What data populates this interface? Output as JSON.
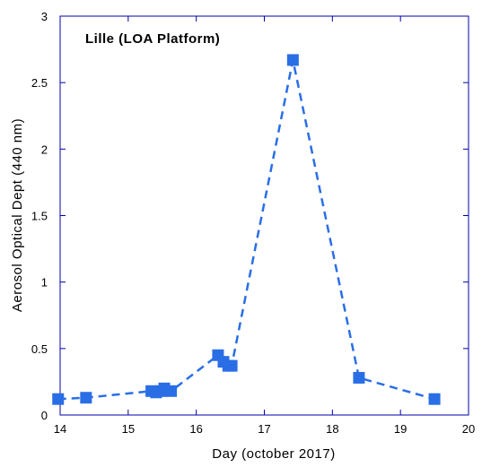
{
  "chart_data": {
    "type": "line",
    "title": "Lille (LOA Platform)",
    "xlabel": "Day (october 2017)",
    "ylabel": "Aerosol Optical Dept (440 nm)",
    "xlim": [
      14,
      20
    ],
    "ylim": [
      0,
      3
    ],
    "xticks": [
      "14",
      "15",
      "16",
      "17",
      "18",
      "19",
      "20"
    ],
    "yticks": [
      "0",
      "0.5",
      "1",
      "1.5",
      "2",
      "2.5",
      "3"
    ],
    "grid": false,
    "series_color": "#2a6ee6",
    "series": [
      {
        "x": [
          13.97,
          14.38,
          15.34,
          15.41,
          15.48,
          15.53,
          15.63,
          16.32,
          16.4,
          16.47,
          16.52,
          17.42,
          18.39,
          19.5
        ],
        "y": [
          0.12,
          0.13,
          0.18,
          0.17,
          0.18,
          0.2,
          0.18,
          0.45,
          0.4,
          0.37,
          0.37,
          2.67,
          0.28,
          0.12
        ]
      }
    ]
  }
}
